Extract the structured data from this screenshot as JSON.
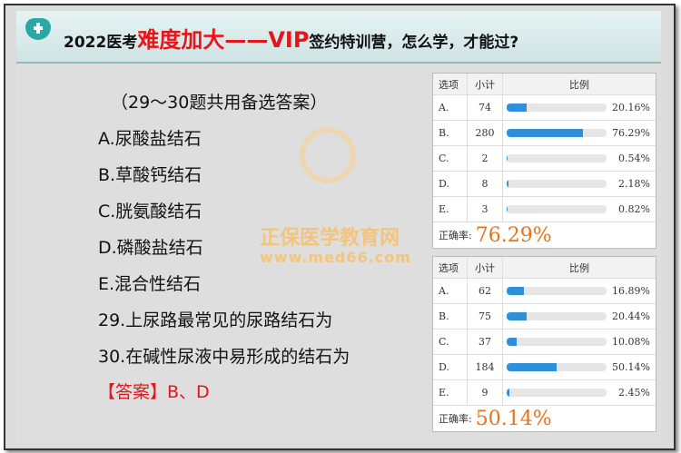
{
  "header": {
    "title_parts": [
      "2022医考",
      "难度加大",
      "——VIP",
      "签约特训营，怎么学，才能过?"
    ]
  },
  "watermark": {
    "brand": "正保医学教育网",
    "url": "www.med66.com"
  },
  "question": {
    "intro": "（29～30题共用备选答案）",
    "options": [
      "A.尿酸盐结石",
      "B.草酸钙结石",
      "C.胱氨酸结石",
      "D.磷酸盐结石",
      "E.混合性结石"
    ],
    "items": [
      "29.上尿路最常见的尿路结石为",
      "30.在碱性尿液中易形成的结石为"
    ],
    "answer": "【答案】B、D"
  },
  "tables": [
    {
      "columns": [
        "选项",
        "小计",
        "比例"
      ],
      "rows": [
        {
          "option": "A.",
          "count": 74,
          "ratio": 20.16,
          "ratio_label": "20.16%"
        },
        {
          "option": "B.",
          "count": 280,
          "ratio": 76.29,
          "ratio_label": "76.29%"
        },
        {
          "option": "C.",
          "count": 2,
          "ratio": 0.54,
          "ratio_label": "0.54%"
        },
        {
          "option": "D.",
          "count": 8,
          "ratio": 2.18,
          "ratio_label": "2.18%"
        },
        {
          "option": "E.",
          "count": 3,
          "ratio": 0.82,
          "ratio_label": "0.82%"
        }
      ],
      "accuracy_label": "正确率:",
      "accuracy": "76.29%"
    },
    {
      "columns": [
        "选项",
        "小计",
        "比例"
      ],
      "rows": [
        {
          "option": "A.",
          "count": 62,
          "ratio": 16.89,
          "ratio_label": "16.89%"
        },
        {
          "option": "B.",
          "count": 75,
          "ratio": 20.44,
          "ratio_label": "20.44%"
        },
        {
          "option": "C.",
          "count": 37,
          "ratio": 10.08,
          "ratio_label": "10.08%"
        },
        {
          "option": "D.",
          "count": 184,
          "ratio": 50.14,
          "ratio_label": "50.14%"
        },
        {
          "option": "E.",
          "count": 9,
          "ratio": 2.45,
          "ratio_label": "2.45%"
        }
      ],
      "accuracy_label": "正确率:",
      "accuracy": "50.14%"
    }
  ]
}
